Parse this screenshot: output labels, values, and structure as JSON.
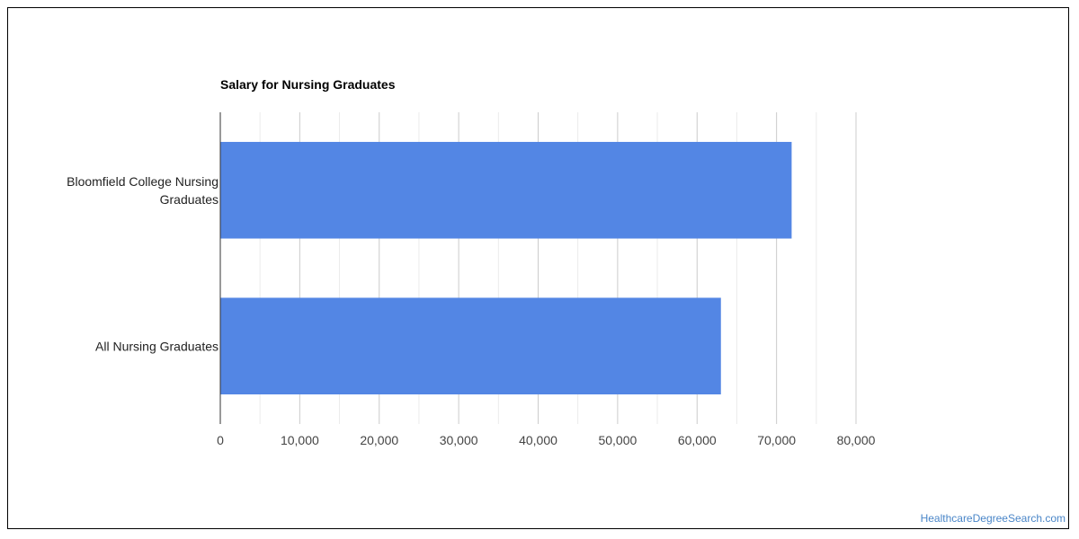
{
  "chart_data": {
    "type": "bar",
    "orientation": "horizontal",
    "title": "Salary for Nursing Graduates",
    "categories": [
      [
        "Bloomfield College Nursing",
        "Graduates"
      ],
      [
        "All Nursing Graduates"
      ]
    ],
    "values": [
      71900,
      63000
    ],
    "xlim": [
      0,
      80000
    ],
    "xticks": [
      0,
      10000,
      20000,
      30000,
      40000,
      50000,
      60000,
      70000,
      80000
    ],
    "xtick_labels": [
      "0",
      "10,000",
      "20,000",
      "30,000",
      "40,000",
      "50,000",
      "60,000",
      "70,000",
      "80,000"
    ],
    "grid": true,
    "legend": "none",
    "bar_color": "#5386e4"
  },
  "watermark": "HealthcareDegreeSearch.com"
}
